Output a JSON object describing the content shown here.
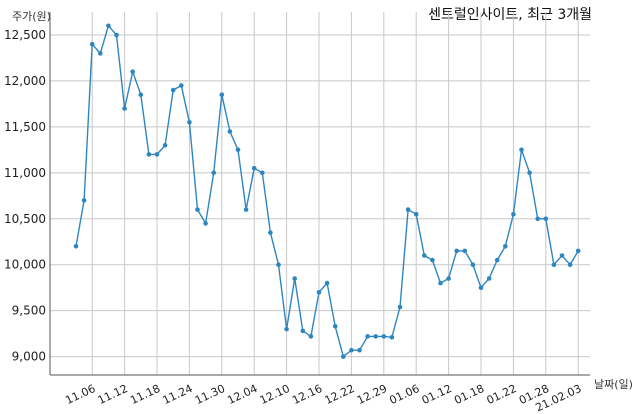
{
  "chart_data": {
    "type": "line",
    "title": "센트럴인사이트, 최근 3개월",
    "ylabel": "주가(원)",
    "xlabel": "날짜(일)",
    "ylim": [
      8800,
      12750
    ],
    "yticks": [
      9000,
      9500,
      10000,
      10500,
      11000,
      11500,
      12000,
      12500
    ],
    "ytick_labels": [
      "9,000",
      "9,500",
      "10,000",
      "10,500",
      "11,000",
      "11,500",
      "12,000",
      "12,500"
    ],
    "xtick_labels": [
      "11.06",
      "11.12",
      "11.18",
      "11.24",
      "11.30",
      "12.04",
      "12.10",
      "12.16",
      "12.22",
      "12.29",
      "01.06",
      "01.12",
      "01.18",
      "01.22",
      "01.28",
      "21.02.03"
    ],
    "xtick_index": [
      2,
      6,
      10,
      14,
      18,
      22,
      26,
      30,
      34,
      38,
      42,
      46,
      50,
      54,
      58,
      62
    ],
    "grid": true,
    "color": "#2e86c1",
    "series": [
      {
        "values": [
          10200,
          10700,
          12400,
          12300,
          12600,
          12500,
          11700,
          12100,
          11850,
          11200,
          11200,
          11300,
          11900,
          11950,
          11550,
          10600,
          10450,
          11000,
          11850,
          11450,
          11250,
          10600,
          11050,
          11000,
          10350,
          10000,
          9300,
          9850,
          9280,
          9220,
          9700,
          9800,
          9330,
          9000,
          9070,
          9070,
          9220,
          9220,
          9220,
          9210,
          9540,
          10600,
          10550,
          10100,
          10050,
          9800,
          9850,
          10150,
          10150,
          10000,
          9750,
          9850,
          10050,
          10200,
          10550,
          11250,
          11000,
          10500,
          10500,
          10000,
          10100,
          10000,
          10150
        ]
      }
    ]
  }
}
